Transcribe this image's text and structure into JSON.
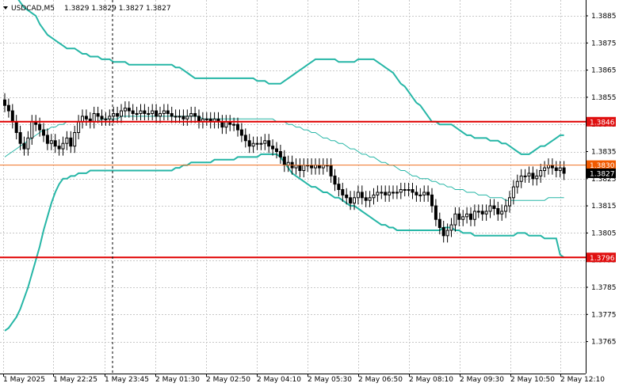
{
  "header": {
    "menu_icon": "triangle-down-icon",
    "symbol": "USDCAD,M5",
    "ohlc": "1.3829 1.3829 1.3827 1.3827"
  },
  "colors": {
    "background": "#ffffff",
    "grid": "#c8c8c8",
    "bollinger": "#26b6a6",
    "level_line": "#e00000",
    "level_tag": "#e01010",
    "current_line": "#f07020",
    "current_tag": "#f05a00",
    "price_tag": "#000000",
    "candle": "#000000"
  },
  "chart_data": {
    "type": "candlestick",
    "title": "USDCAD,M5",
    "ylim": [
      1.3762,
      1.3898
    ],
    "y_ticks": [
      "1.3885",
      "1.3875",
      "1.3865",
      "1.3855",
      "1.3845",
      "1.3835",
      "1.3825",
      "1.3815",
      "1.3805",
      "1.3795",
      "1.3785",
      "1.3775",
      "1.3765"
    ],
    "x_ticks": [
      "1 May 2025",
      "1 May 22:25",
      "1 May 23:45",
      "2 May 01:30",
      "2 May 02:50",
      "2 May 04:10",
      "2 May 05:30",
      "2 May 06:50",
      "2 May 08:10",
      "2 May 09:30",
      "2 May 10:50",
      "2 May 12:10"
    ],
    "grid": true,
    "levels": [
      {
        "price": 1.3846,
        "label": "1.3846",
        "kind": "support-resistance"
      },
      {
        "price": 1.3796,
        "label": "1.3796",
        "kind": "support-resistance"
      }
    ],
    "current_level": {
      "price": 1.383,
      "label": "1.3830"
    },
    "last_price": {
      "price": 1.3827,
      "label": "1.3827"
    },
    "closes": [
      1.3852,
      1.385,
      1.3846,
      1.3842,
      1.3838,
      1.3836,
      1.384,
      1.3846,
      1.3845,
      1.3843,
      1.3841,
      1.3838,
      1.3839,
      1.3837,
      1.3836,
      1.3838,
      1.384,
      1.3837,
      1.3842,
      1.3846,
      1.3848,
      1.3847,
      1.3846,
      1.3849,
      1.3848,
      1.3847,
      1.3847,
      1.3848,
      1.3849,
      1.3848,
      1.385,
      1.3851,
      1.385,
      1.3849,
      1.3849,
      1.385,
      1.3849,
      1.3849,
      1.385,
      1.3848,
      1.3849,
      1.385,
      1.3849,
      1.3848,
      1.3848,
      1.3848,
      1.3847,
      1.3848,
      1.3849,
      1.3848,
      1.3846,
      1.3847,
      1.3847,
      1.3846,
      1.3847,
      1.3846,
      1.3844,
      1.3846,
      1.3845,
      1.3845,
      1.3843,
      1.3841,
      1.3839,
      1.3837,
      1.3838,
      1.3838,
      1.3838,
      1.3839,
      1.3837,
      1.3836,
      1.3835,
      1.3833,
      1.383,
      1.3831,
      1.3829,
      1.383,
      1.3828,
      1.383,
      1.383,
      1.3829,
      1.383,
      1.3829,
      1.383,
      1.383,
      1.3826,
      1.3823,
      1.3821,
      1.3819,
      1.3818,
      1.3816,
      1.3818,
      1.382,
      1.3818,
      1.3817,
      1.3818,
      1.3819,
      1.382,
      1.382,
      1.3819,
      1.382,
      1.382,
      1.382,
      1.3821,
      1.3821,
      1.3821,
      1.382,
      1.3819,
      1.3819,
      1.382,
      1.3819,
      1.3815,
      1.381,
      1.3807,
      1.3804,
      1.3806,
      1.3808,
      1.3812,
      1.381,
      1.3811,
      1.3812,
      1.381,
      1.3813,
      1.3813,
      1.3812,
      1.3813,
      1.3815,
      1.3814,
      1.3812,
      1.3813,
      1.3815,
      1.3818,
      1.3822,
      1.3824,
      1.3826,
      1.3826,
      1.3827,
      1.3825,
      1.3826,
      1.3828,
      1.3829,
      1.383,
      1.3829,
      1.3828,
      1.3829,
      1.3827
    ],
    "bollinger_upper": [
      1.3898,
      1.3896,
      1.3894,
      1.3892,
      1.389,
      1.3888,
      1.3887,
      1.3886,
      1.3885,
      1.3882,
      1.388,
      1.3878,
      1.3877,
      1.3876,
      1.3875,
      1.3874,
      1.3873,
      1.3873,
      1.3873,
      1.3872,
      1.3871,
      1.3871,
      1.387,
      1.387,
      1.387,
      1.3869,
      1.3869,
      1.3869,
      1.3868,
      1.3868,
      1.3868,
      1.3868,
      1.3867,
      1.3867,
      1.3867,
      1.3867,
      1.3867,
      1.3867,
      1.3867,
      1.3867,
      1.3867,
      1.3867,
      1.3867,
      1.3867,
      1.3866,
      1.3866,
      1.3865,
      1.3864,
      1.3863,
      1.3862,
      1.3862,
      1.3862,
      1.3862,
      1.3862,
      1.3862,
      1.3862,
      1.3862,
      1.3862,
      1.3862,
      1.3862,
      1.3862,
      1.3862,
      1.3862,
      1.3862,
      1.3862,
      1.3861,
      1.3861,
      1.3861,
      1.386,
      1.386,
      1.386,
      1.386,
      1.3861,
      1.3862,
      1.3863,
      1.3864,
      1.3865,
      1.3866,
      1.3867,
      1.3868,
      1.3869,
      1.3869,
      1.3869,
      1.3869,
      1.3869,
      1.3869,
      1.3868,
      1.3868,
      1.3868,
      1.3868,
      1.3868,
      1.3869,
      1.3869,
      1.3869,
      1.3869,
      1.3869,
      1.3868,
      1.3867,
      1.3866,
      1.3865,
      1.3864,
      1.3862,
      1.386,
      1.3859,
      1.3857,
      1.3855,
      1.3853,
      1.3852,
      1.385,
      1.3848,
      1.3846,
      1.3846,
      1.3845,
      1.3845,
      1.3845,
      1.3845,
      1.3844,
      1.3843,
      1.3842,
      1.3841,
      1.3841,
      1.384,
      1.384,
      1.384,
      1.384,
      1.3839,
      1.3839,
      1.3839,
      1.3838,
      1.3838,
      1.3837,
      1.3836,
      1.3835,
      1.3834,
      1.3834,
      1.3834,
      1.3835,
      1.3836,
      1.3837,
      1.3837,
      1.3838,
      1.3839,
      1.384,
      1.3841,
      1.3841
    ],
    "bollinger_middle": [
      1.3833,
      1.3834,
      1.3835,
      1.3836,
      1.3837,
      1.3838,
      1.3839,
      1.384,
      1.3841,
      1.3842,
      1.3843,
      1.3843,
      1.3844,
      1.3844,
      1.3845,
      1.3845,
      1.3846,
      1.3846,
      1.3846,
      1.3846,
      1.3846,
      1.3846,
      1.3846,
      1.3846,
      1.3846,
      1.3847,
      1.3847,
      1.3847,
      1.3847,
      1.3847,
      1.3848,
      1.3848,
      1.3848,
      1.3848,
      1.3848,
      1.3848,
      1.3848,
      1.3848,
      1.3848,
      1.3848,
      1.3848,
      1.3848,
      1.3848,
      1.3848,
      1.3848,
      1.3848,
      1.3848,
      1.3848,
      1.3848,
      1.3848,
      1.3848,
      1.3847,
      1.3847,
      1.3847,
      1.3847,
      1.3847,
      1.3847,
      1.3847,
      1.3847,
      1.3847,
      1.3847,
      1.3847,
      1.3847,
      1.3847,
      1.3847,
      1.3847,
      1.3847,
      1.3847,
      1.3847,
      1.3847,
      1.3846,
      1.3846,
      1.3846,
      1.3845,
      1.3845,
      1.3844,
      1.3844,
      1.3843,
      1.3843,
      1.3842,
      1.3842,
      1.3841,
      1.384,
      1.384,
      1.3839,
      1.3839,
      1.3838,
      1.3838,
      1.3837,
      1.3836,
      1.3836,
      1.3835,
      1.3834,
      1.3834,
      1.3833,
      1.3833,
      1.3832,
      1.3831,
      1.3831,
      1.383,
      1.383,
      1.3829,
      1.3828,
      1.3828,
      1.3827,
      1.3826,
      1.3826,
      1.3825,
      1.3825,
      1.3825,
      1.3824,
      1.3824,
      1.3823,
      1.3823,
      1.3822,
      1.3822,
      1.3821,
      1.3821,
      1.3821,
      1.382,
      1.382,
      1.382,
      1.3819,
      1.3819,
      1.3819,
      1.3818,
      1.3818,
      1.3818,
      1.3818,
      1.3817,
      1.3817,
      1.3817,
      1.3817,
      1.3817,
      1.3817,
      1.3817,
      1.3817,
      1.3817,
      1.3817,
      1.3817,
      1.3818,
      1.3818,
      1.3818,
      1.3818,
      1.3818
    ],
    "bollinger_lower": [
      1.3769,
      1.377,
      1.3772,
      1.3774,
      1.3777,
      1.3781,
      1.3785,
      1.379,
      1.3795,
      1.38,
      1.3806,
      1.3811,
      1.3816,
      1.382,
      1.3823,
      1.3825,
      1.3825,
      1.3826,
      1.3826,
      1.3827,
      1.3827,
      1.3827,
      1.3828,
      1.3828,
      1.3828,
      1.3828,
      1.3828,
      1.3828,
      1.3828,
      1.3828,
      1.3828,
      1.3828,
      1.3828,
      1.3828,
      1.3828,
      1.3828,
      1.3828,
      1.3828,
      1.3828,
      1.3828,
      1.3828,
      1.3828,
      1.3828,
      1.3828,
      1.3829,
      1.3829,
      1.383,
      1.383,
      1.3831,
      1.3831,
      1.3831,
      1.3831,
      1.3831,
      1.3831,
      1.3832,
      1.3832,
      1.3832,
      1.3832,
      1.3832,
      1.3832,
      1.3833,
      1.3833,
      1.3833,
      1.3833,
      1.3833,
      1.3833,
      1.3834,
      1.3834,
      1.3834,
      1.3834,
      1.3834,
      1.3833,
      1.3831,
      1.3829,
      1.3827,
      1.3826,
      1.3825,
      1.3824,
      1.3823,
      1.3822,
      1.3822,
      1.3821,
      1.382,
      1.382,
      1.3819,
      1.3818,
      1.3818,
      1.3817,
      1.3816,
      1.3815,
      1.3815,
      1.3814,
      1.3813,
      1.3812,
      1.3811,
      1.381,
      1.3809,
      1.3808,
      1.3808,
      1.3807,
      1.3807,
      1.3806,
      1.3806,
      1.3806,
      1.3806,
      1.3806,
      1.3806,
      1.3806,
      1.3806,
      1.3806,
      1.3806,
      1.3806,
      1.3806,
      1.3807,
      1.3807,
      1.3807,
      1.3806,
      1.3806,
      1.3805,
      1.3805,
      1.3805,
      1.3804,
      1.3804,
      1.3804,
      1.3804,
      1.3804,
      1.3804,
      1.3804,
      1.3804,
      1.3804,
      1.3804,
      1.3804,
      1.3805,
      1.3805,
      1.3805,
      1.3804,
      1.3804,
      1.3804,
      1.3804,
      1.3803,
      1.3803,
      1.3803,
      1.3803,
      1.3797,
      1.3796
    ]
  }
}
